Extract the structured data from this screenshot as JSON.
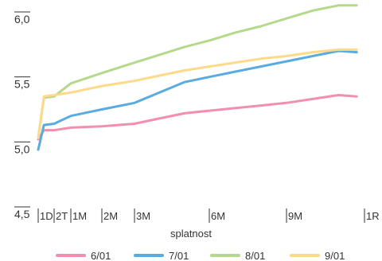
{
  "chart_data": {
    "type": "line",
    "title": "",
    "xlabel": "splatnost",
    "ylabel": "",
    "ylim": [
      4.5,
      6.0
    ],
    "y_ticks": [
      "4,5",
      "5,0",
      "5,5",
      "6,0"
    ],
    "x_ticks": [
      "1D",
      "2T",
      "1M",
      "2M",
      "3M",
      "6M",
      "9M",
      "1R"
    ],
    "x_months": [
      0.033,
      0.5,
      1,
      2,
      3,
      6,
      9,
      12
    ],
    "legend_position": "bottom",
    "grid": false,
    "series": [
      {
        "name": "6/01",
        "color": "#f28fb0",
        "points": [
          [
            0.033,
            5.02
          ],
          [
            0.2,
            5.09
          ],
          [
            0.5,
            5.09
          ],
          [
            1,
            5.11
          ],
          [
            2,
            5.12
          ],
          [
            3,
            5.14
          ],
          [
            4,
            5.18
          ],
          [
            5,
            5.22
          ],
          [
            6,
            5.24
          ],
          [
            7,
            5.26
          ],
          [
            8,
            5.28
          ],
          [
            9,
            5.3
          ],
          [
            10,
            5.33
          ],
          [
            11,
            5.36
          ],
          [
            11.7,
            5.35
          ]
        ]
      },
      {
        "name": "7/01",
        "color": "#5aabe0",
        "points": [
          [
            0.033,
            4.94
          ],
          [
            0.2,
            5.13
          ],
          [
            0.5,
            5.14
          ],
          [
            1,
            5.2
          ],
          [
            2,
            5.25
          ],
          [
            3,
            5.3
          ],
          [
            4,
            5.38
          ],
          [
            5,
            5.46
          ],
          [
            6,
            5.5
          ],
          [
            7,
            5.54
          ],
          [
            8,
            5.58
          ],
          [
            9,
            5.62
          ],
          [
            10,
            5.66
          ],
          [
            11,
            5.7
          ],
          [
            11.7,
            5.69
          ]
        ]
      },
      {
        "name": "8/01",
        "color": "#b5d98b",
        "points": [
          [
            0.033,
            5.03
          ],
          [
            0.2,
            5.34
          ],
          [
            0.5,
            5.35
          ],
          [
            1,
            5.45
          ],
          [
            2,
            5.53
          ],
          [
            3,
            5.61
          ],
          [
            4,
            5.67
          ],
          [
            5,
            5.73
          ],
          [
            6,
            5.78
          ],
          [
            7,
            5.84
          ],
          [
            8,
            5.89
          ],
          [
            9,
            5.95
          ],
          [
            10,
            6.01
          ],
          [
            11,
            6.05
          ],
          [
            11.7,
            6.05
          ]
        ]
      },
      {
        "name": "9/01",
        "color": "#fdd98a",
        "points": [
          [
            0.033,
            5.03
          ],
          [
            0.2,
            5.35
          ],
          [
            0.5,
            5.36
          ],
          [
            1,
            5.38
          ],
          [
            2,
            5.43
          ],
          [
            3,
            5.47
          ],
          [
            4,
            5.51
          ],
          [
            5,
            5.55
          ],
          [
            6,
            5.58
          ],
          [
            7,
            5.61
          ],
          [
            8,
            5.64
          ],
          [
            9,
            5.66
          ],
          [
            10,
            5.69
          ],
          [
            11,
            5.71
          ],
          [
            11.7,
            5.71
          ]
        ]
      }
    ]
  }
}
